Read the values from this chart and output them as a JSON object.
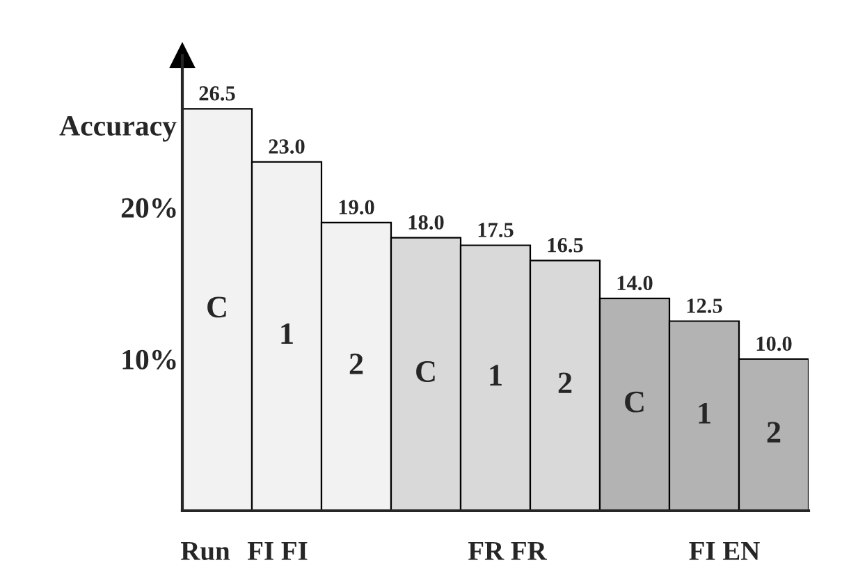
{
  "chart_data": {
    "type": "bar",
    "ylabel": "Accuracy",
    "categories": [
      null,
      null,
      null,
      null,
      null,
      null,
      null,
      null,
      null
    ],
    "values": [
      26.5,
      23.0,
      19.0,
      18.0,
      17.5,
      16.5,
      14.0,
      12.5,
      10.0
    ],
    "value_labels": [
      "26.5",
      "23.0",
      "19.0",
      "18.0",
      "17.5",
      "16.5",
      "14.0",
      "12.5",
      "10.0"
    ],
    "colors": [
      "#f2f2f2",
      "#f2f2f2",
      "#f2f2f2",
      "#d9d9d9",
      "#d9d9d9",
      "#d9d9d9",
      "#b3b3b3",
      "#b3b3b3",
      "#b3b3b3"
    ],
    "ylim": [
      0,
      30
    ],
    "yticks": [
      {
        "value": 10,
        "label": "10%"
      },
      {
        "value": 20,
        "label": "20%"
      }
    ],
    "tick_labels": "y",
    "annotations": [
      "C",
      "1",
      "2",
      "C",
      "1",
      "2",
      "C",
      "1",
      "2",
      "Run",
      "FI FI",
      "FR FR",
      "FI EN"
    ]
  }
}
